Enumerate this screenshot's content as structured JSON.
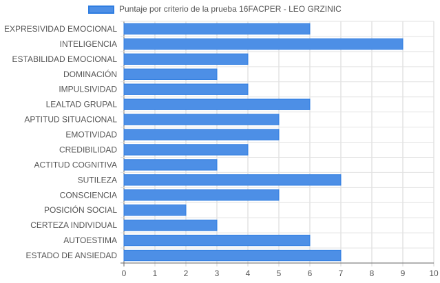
{
  "chart_data": {
    "type": "bar",
    "orientation": "horizontal",
    "title": "",
    "xlabel": "",
    "ylabel": "",
    "xlim": [
      0,
      10
    ],
    "x_ticks": [
      "0",
      "1",
      "2",
      "3",
      "4",
      "5",
      "6",
      "7",
      "8",
      "9",
      "10"
    ],
    "grid": true,
    "legend_position": "top",
    "categories": [
      "EXPRESIVIDAD EMOCIONAL",
      "INTELIGENCIA",
      "ESTABILIDAD EMOCIONAL",
      "DOMINACIÓN",
      "IMPULSIVIDAD",
      "LEALTAD GRUPAL",
      "APTITUD SITUACIONAL",
      "EMOTIVIDAD",
      "CREDIBILIDAD",
      "ACTITUD COGNITIVA",
      "SUTILEZA",
      "CONSCIENCIA",
      "POSICIÓN SOCIAL",
      "CERTEZA INDIVIDUAL",
      "AUTOESTIMA",
      "ESTADO DE ANSIEDAD"
    ],
    "series": [
      {
        "name": "Puntaje por criterio de la prueba 16FACPER - LEO GRZINIC",
        "values": [
          6,
          9,
          4,
          3,
          4,
          6,
          5,
          5,
          4,
          3,
          7,
          5,
          2,
          3,
          6,
          7
        ],
        "color": "#4d8fe6",
        "border_color": "#2f7de1"
      }
    ]
  }
}
